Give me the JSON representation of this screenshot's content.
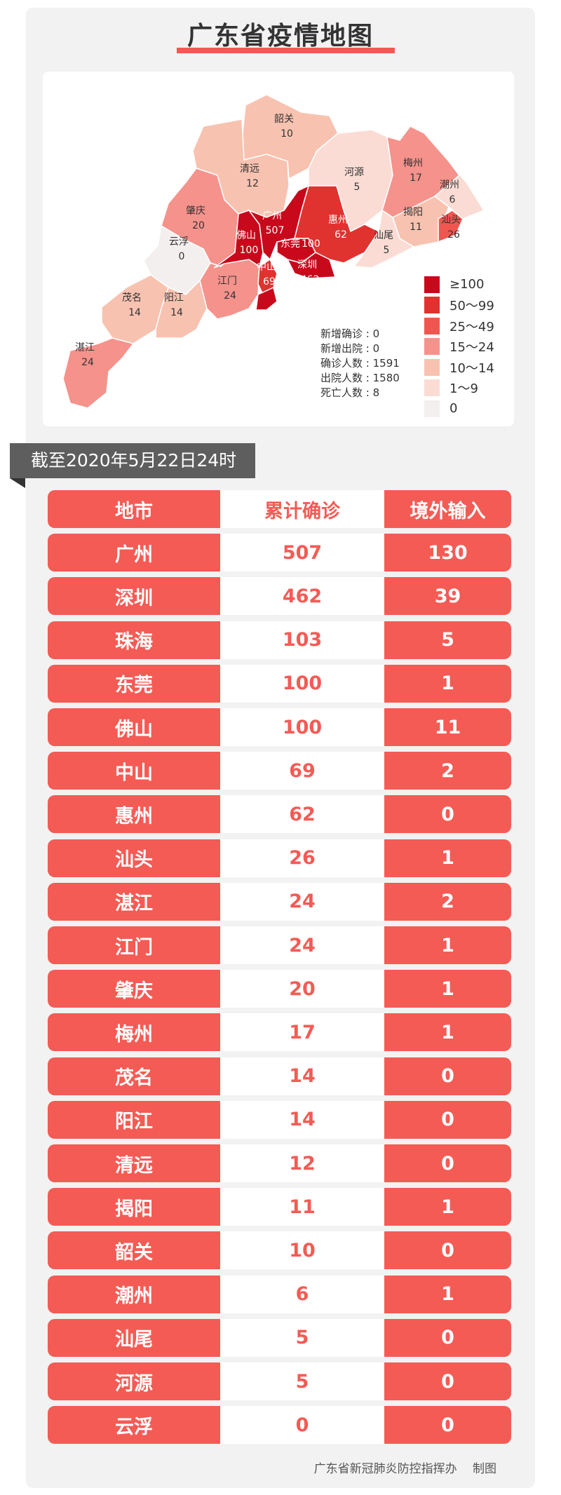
{
  "title": "广东省疫情地图",
  "colors": {
    "accent": "#f45b55",
    "background": "#f2f2f2",
    "banner": "#5e5e5e"
  },
  "map": {
    "regions": [
      {
        "name": "韶关",
        "value": 10
      },
      {
        "name": "清远",
        "value": 12
      },
      {
        "name": "肇庆",
        "value": 20
      },
      {
        "name": "云浮",
        "value": 0
      },
      {
        "name": "茂名",
        "value": 14
      },
      {
        "name": "阳江",
        "value": 14
      },
      {
        "name": "湛江",
        "value": 24
      },
      {
        "name": "江门",
        "value": 24
      },
      {
        "name": "河源",
        "value": 5
      },
      {
        "name": "梅州",
        "value": 17
      },
      {
        "name": "潮州",
        "value": 6
      },
      {
        "name": "揭阳",
        "value": 11
      },
      {
        "name": "汕头",
        "value": 26
      },
      {
        "name": "汕尾",
        "value": 5
      },
      {
        "name": "惠州",
        "value": 62
      },
      {
        "name": "佛山",
        "value": 100
      },
      {
        "name": "广州",
        "value": 507
      },
      {
        "name": "东莞",
        "value": 100
      },
      {
        "name": "深圳",
        "value": 462
      },
      {
        "name": "中山",
        "value": 69
      },
      {
        "name": "珠海",
        "value": 103
      }
    ],
    "stats": [
      {
        "label": "新增确诊",
        "value": "0"
      },
      {
        "label": "新增出院",
        "value": "0"
      },
      {
        "label": "确诊人数",
        "value": "1591"
      },
      {
        "label": "出院人数",
        "value": "1580"
      },
      {
        "label": "死亡人数",
        "value": "8"
      }
    ],
    "legend": [
      {
        "label": "≥100",
        "color": "#c8091b"
      },
      {
        "label": "50～99",
        "color": "#e0322f"
      },
      {
        "label": "25～49",
        "color": "#f05650"
      },
      {
        "label": "15～24",
        "color": "#f5928c"
      },
      {
        "label": "10～14",
        "color": "#f8c2b0"
      },
      {
        "label": "1～9",
        "color": "#fbdcd5"
      },
      {
        "label": "0",
        "color": "#f4efef"
      }
    ]
  },
  "date_banner": "截至2020年5月22日24时",
  "table": {
    "headers": [
      "地市",
      "累计确诊",
      "境外输入"
    ],
    "rows": [
      [
        "广州",
        "507",
        "130"
      ],
      [
        "深圳",
        "462",
        "39"
      ],
      [
        "珠海",
        "103",
        "5"
      ],
      [
        "东莞",
        "100",
        "1"
      ],
      [
        "佛山",
        "100",
        "11"
      ],
      [
        "中山",
        "69",
        "2"
      ],
      [
        "惠州",
        "62",
        "0"
      ],
      [
        "汕头",
        "26",
        "1"
      ],
      [
        "湛江",
        "24",
        "2"
      ],
      [
        "江门",
        "24",
        "1"
      ],
      [
        "肇庆",
        "20",
        "1"
      ],
      [
        "梅州",
        "17",
        "1"
      ],
      [
        "茂名",
        "14",
        "0"
      ],
      [
        "阳江",
        "14",
        "0"
      ],
      [
        "清远",
        "12",
        "0"
      ],
      [
        "揭阳",
        "11",
        "1"
      ],
      [
        "韶关",
        "10",
        "0"
      ],
      [
        "潮州",
        "6",
        "1"
      ],
      [
        "汕尾",
        "5",
        "0"
      ],
      [
        "河源",
        "5",
        "0"
      ],
      [
        "云浮",
        "0",
        "0"
      ]
    ]
  },
  "footer": "广东省新冠肺炎防控指挥办　 制图"
}
